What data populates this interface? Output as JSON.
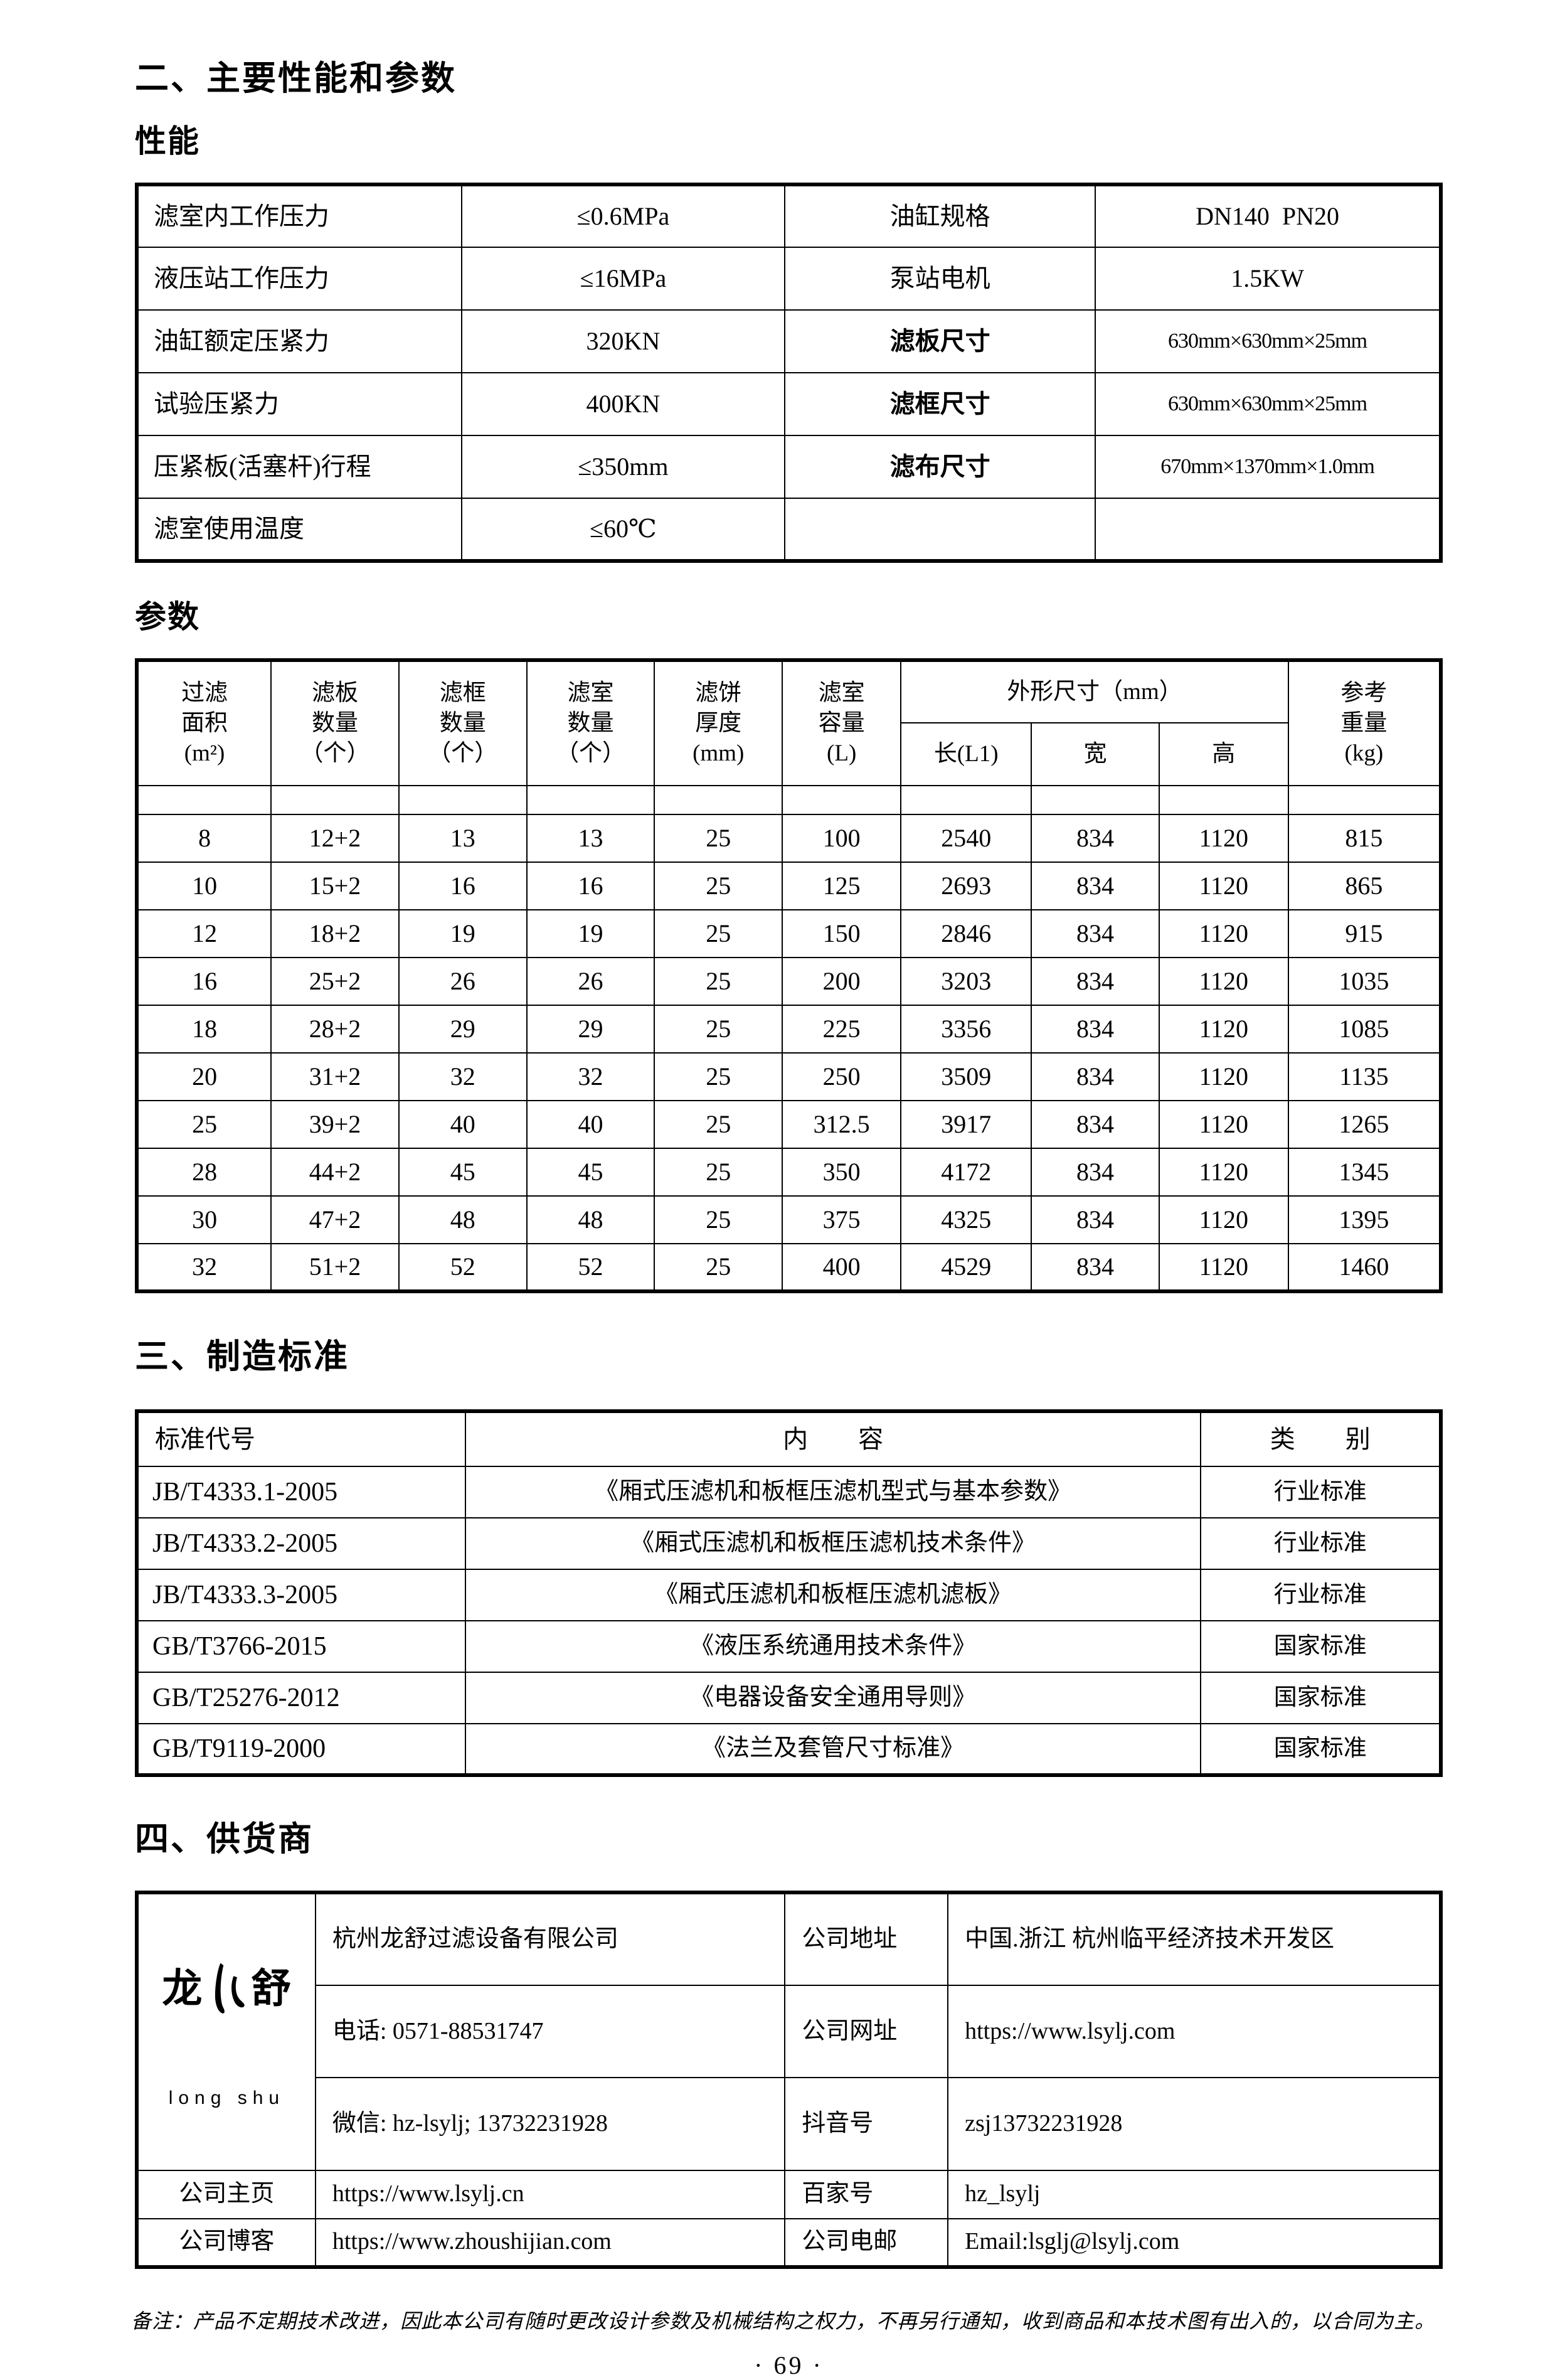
{
  "sections": {
    "main_title": "二、主要性能和参数",
    "performance_label": "性能",
    "params_label": "参数",
    "standards_title": "三、制造标准",
    "supplier_title": "四、供货商"
  },
  "performance_table": {
    "rows": [
      [
        "滤室内工作压力",
        "≤0.6MPa",
        "油缸规格",
        "DN140  PN20"
      ],
      [
        "液压站工作压力",
        "≤16MPa",
        "泵站电机",
        "1.5KW"
      ],
      [
        "油缸额定压紧力",
        "320KN",
        "滤板尺寸",
        "630mm×630mm×25mm"
      ],
      [
        "试验压紧力",
        "400KN",
        "滤框尺寸",
        "630mm×630mm×25mm"
      ],
      [
        "压紧板(活塞杆)行程",
        "≤350mm",
        "滤布尺寸",
        "670mm×1370mm×1.0mm"
      ],
      [
        "滤室使用温度",
        "≤60℃",
        "",
        ""
      ]
    ]
  },
  "params_table": {
    "header": {
      "filter_area": "过滤\n面积\n(m²)",
      "plate_count": "滤板\n数量\n（个）",
      "frame_count": "滤框\n数量\n（个）",
      "chamber_count": "滤室\n数量\n（个）",
      "cake_thickness": "滤饼\n厚度\n(mm)",
      "chamber_volume": "滤室\n容量\n(L)",
      "dimensions": "外形尺寸（mm）",
      "length": "长(L1)",
      "width": "宽",
      "height": "高",
      "ref_weight": "参考\n重量\n(kg)"
    },
    "rows": [
      [
        "8",
        "12+2",
        "13",
        "13",
        "25",
        "100",
        "2540",
        "834",
        "1120",
        "815"
      ],
      [
        "10",
        "15+2",
        "16",
        "16",
        "25",
        "125",
        "2693",
        "834",
        "1120",
        "865"
      ],
      [
        "12",
        "18+2",
        "19",
        "19",
        "25",
        "150",
        "2846",
        "834",
        "1120",
        "915"
      ],
      [
        "16",
        "25+2",
        "26",
        "26",
        "25",
        "200",
        "3203",
        "834",
        "1120",
        "1035"
      ],
      [
        "18",
        "28+2",
        "29",
        "29",
        "25",
        "225",
        "3356",
        "834",
        "1120",
        "1085"
      ],
      [
        "20",
        "31+2",
        "32",
        "32",
        "25",
        "250",
        "3509",
        "834",
        "1120",
        "1135"
      ],
      [
        "25",
        "39+2",
        "40",
        "40",
        "25",
        "312.5",
        "3917",
        "834",
        "1120",
        "1265"
      ],
      [
        "28",
        "44+2",
        "45",
        "45",
        "25",
        "350",
        "4172",
        "834",
        "1120",
        "1345"
      ],
      [
        "30",
        "47+2",
        "48",
        "48",
        "25",
        "375",
        "4325",
        "834",
        "1120",
        "1395"
      ],
      [
        "32",
        "51+2",
        "52",
        "52",
        "25",
        "400",
        "4529",
        "834",
        "1120",
        "1460"
      ]
    ]
  },
  "standards_table": {
    "header": {
      "code": "标准代号",
      "content": "内　　容",
      "category": "类　　别"
    },
    "rows": [
      [
        "JB/T4333.1-2005",
        "《厢式压滤机和板框压滤机型式与基本参数》",
        "行业标准"
      ],
      [
        "JB/T4333.2-2005",
        "《厢式压滤机和板框压滤机技术条件》",
        "行业标准"
      ],
      [
        "JB/T4333.3-2005",
        "《厢式压滤机和板框压滤机滤板》",
        "行业标准"
      ],
      [
        "GB/T3766-2015",
        "《液压系统通用技术条件》",
        "国家标准"
      ],
      [
        "GB/T25276-2012",
        "《电器设备安全通用导则》",
        "国家标准"
      ],
      [
        "GB/T9119-2000",
        "《法兰及套管尺寸标准》",
        "国家标准"
      ]
    ]
  },
  "supplier": {
    "logo_cn_left": "龙",
    "logo_cn_right": "舒",
    "logo_en": "long shu",
    "company_name": "杭州龙舒过滤设备有限公司",
    "phone": "电话: 0571-88531747",
    "wechat": "微信: hz-lsylj; 13732231928",
    "homepage_label": "公司主页",
    "homepage": "https://www.lsylj.cn",
    "blog_label": "公司博客",
    "blog": "https://www.zhoushijian.com",
    "address_label": "公司地址",
    "address": "中国.浙江 杭州临平经济技术开发区",
    "website_label": "公司网址",
    "website": "https://www.lsylj.com",
    "douyin_label": "抖音号",
    "douyin": "zsj13732231928",
    "baijia_label": "百家号",
    "baijia": "hz_lsylj",
    "email_label": "公司电邮",
    "email": "Email:lsglj@lsylj.com"
  },
  "footer": {
    "note": "备注：产品不定期技术改进，因此本公司有随时更改设计参数及机械结构之权力，不再另行通知，收到商品和本技术图有出入的，以合同为主。",
    "page_number": "· 69 ·"
  }
}
